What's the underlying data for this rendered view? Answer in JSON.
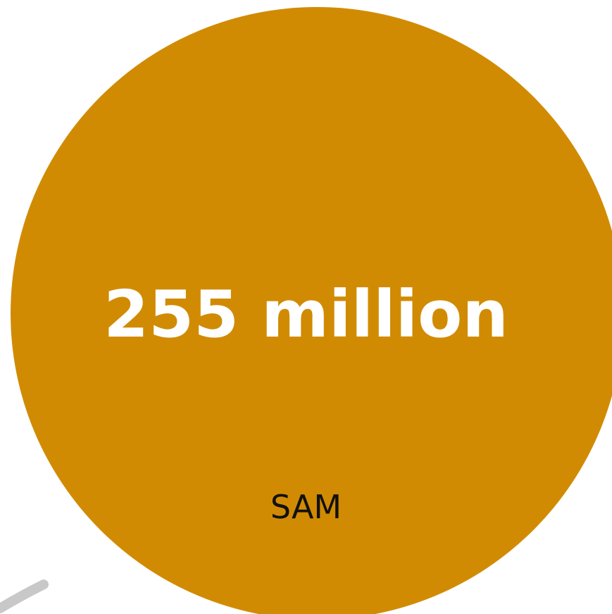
{
  "market_circle": {
    "value": "255 million",
    "label": "SAM",
    "fill_color": "#D18B03",
    "value_color": "#FFFFFF",
    "label_color": "#111111"
  },
  "background_arc": {
    "color": "#C8C8C8"
  }
}
